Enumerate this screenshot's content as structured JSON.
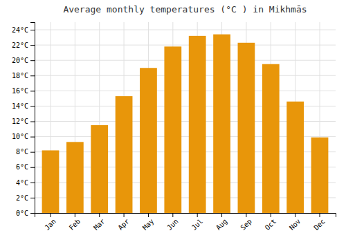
{
  "chart_data": {
    "type": "bar",
    "title": "Average monthly temperatures (°C ) in Mikhmās",
    "categories": [
      "Jan",
      "Feb",
      "Mar",
      "Apr",
      "May",
      "Jun",
      "Jul",
      "Aug",
      "Sep",
      "Oct",
      "Nov",
      "Dec"
    ],
    "values": [
      8.2,
      9.3,
      11.5,
      15.3,
      19.0,
      21.8,
      23.2,
      23.4,
      22.3,
      19.5,
      14.6,
      9.9
    ],
    "color": "#E8960A",
    "ylim": [
      0,
      25
    ],
    "yticks": [
      {
        "value": 0,
        "label": "0°C"
      },
      {
        "value": 2,
        "label": "2°C"
      },
      {
        "value": 4,
        "label": "4°C"
      },
      {
        "value": 6,
        "label": "6°C"
      },
      {
        "value": 8,
        "label": "8°C"
      },
      {
        "value": 10,
        "label": "10°C"
      },
      {
        "value": 12,
        "label": "12°C"
      },
      {
        "value": 14,
        "label": "14°C"
      },
      {
        "value": 16,
        "label": "16°C"
      },
      {
        "value": 18,
        "label": "18°C"
      },
      {
        "value": 20,
        "label": "20°C"
      },
      {
        "value": 22,
        "label": "22°C"
      },
      {
        "value": 24,
        "label": "24°C"
      }
    ],
    "grid": true
  }
}
